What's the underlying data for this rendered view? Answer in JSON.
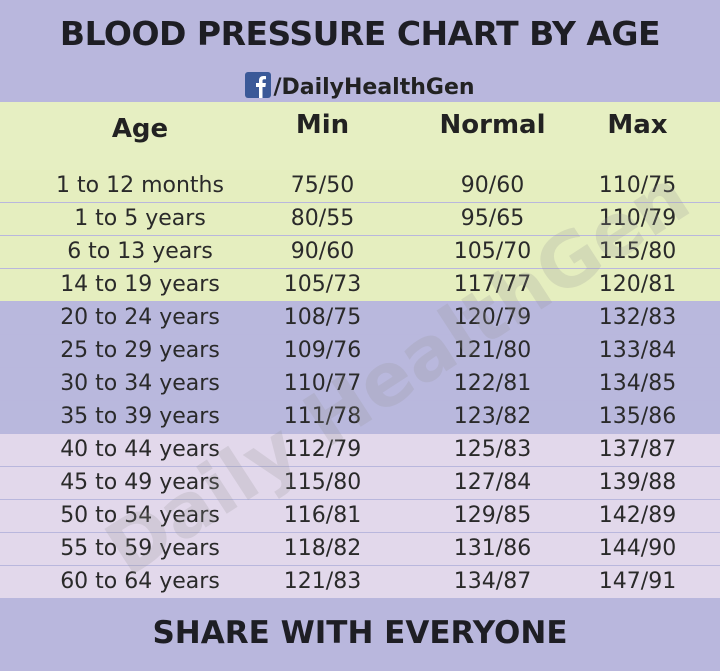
{
  "header": {
    "title": "BLOOD PRESSURE CHART BY AGE",
    "source": "/DailyHealthGen"
  },
  "watermark": "Daily HealthGen",
  "table": {
    "columns": [
      "Age",
      "Min",
      "Normal",
      "Max"
    ],
    "rows": [
      [
        "1 to 12 months",
        "75/50",
        "90/60",
        "110/75"
      ],
      [
        "1 to 5 years",
        "80/55",
        "95/65",
        "110/79"
      ],
      [
        "6 to 13 years",
        "90/60",
        "105/70",
        "115/80"
      ],
      [
        "14 to 19 years",
        "105/73",
        "117/77",
        "120/81"
      ],
      [
        "20 to 24 years",
        "108/75",
        "120/79",
        "132/83"
      ],
      [
        "25 to 29 years",
        "109/76",
        "121/80",
        "133/84"
      ],
      [
        "30 to 34 years",
        "110/77",
        "122/81",
        "134/85"
      ],
      [
        "35 to 39 years",
        "111/78",
        "123/82",
        "135/86"
      ],
      [
        "40 to 44 years",
        "112/79",
        "125/83",
        "137/87"
      ],
      [
        "45 to 49 years",
        "115/80",
        "127/84",
        "139/88"
      ],
      [
        "50 to 54 years",
        "116/81",
        "129/85",
        "142/89"
      ],
      [
        "55 to 59 years",
        "118/82",
        "131/86",
        "144/90"
      ],
      [
        "60 to 64 years",
        "121/83",
        "134/87",
        "147/91"
      ]
    ]
  },
  "footer": {
    "text": "SHARE WITH EVERYONE"
  }
}
